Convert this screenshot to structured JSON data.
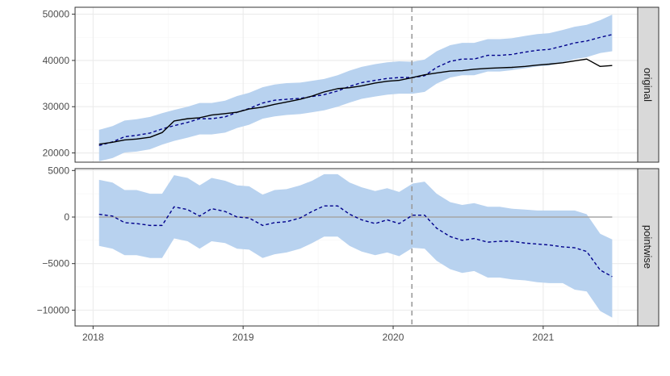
{
  "chart_data": {
    "type": "line",
    "x_tick_labels": [
      "2018",
      "2019",
      "2020",
      "2021"
    ],
    "x_ticks": [
      2018,
      2019,
      2020,
      2021
    ],
    "xlim": [
      2017.88,
      2021.63
    ],
    "intervention_x": 2020.125,
    "colors": {
      "band": "#b8d2ef",
      "actual": "#000000",
      "predicted": "#00008b",
      "zero_line": "#a6a6a6",
      "intervention": "#9a9a9a",
      "strip": "#d9d9d9",
      "grid_major": "#ebebeb",
      "grid_minor": "#f4f4f4",
      "panel_border": "#333333"
    },
    "panels": [
      {
        "label": "original",
        "ylim": [
          18000,
          51500
        ],
        "y_ticks": [
          20000,
          30000,
          40000,
          50000
        ],
        "y_tick_labels": [
          "20000",
          "30000",
          "40000",
          "50000"
        ],
        "series": [
          {
            "name": "band",
            "x": [
              2018.04,
              2018.13,
              2018.21,
              2018.29,
              2018.38,
              2018.46,
              2018.54,
              2018.63,
              2018.71,
              2018.79,
              2018.88,
              2018.96,
              2019.04,
              2019.13,
              2019.21,
              2019.29,
              2019.38,
              2019.46,
              2019.54,
              2019.63,
              2019.71,
              2019.79,
              2019.88,
              2019.96,
              2020.04,
              2020.13,
              2020.21,
              2020.29,
              2020.38,
              2020.46,
              2020.54,
              2020.63,
              2020.71,
              2020.79,
              2020.88,
              2020.96,
              2021.04,
              2021.13,
              2021.21,
              2021.29,
              2021.38,
              2021.46
            ],
            "upper": [
              25000,
              25800,
              27000,
              27300,
              27800,
              28600,
              29300,
              30000,
              30800,
              30800,
              31300,
              32300,
              33000,
              34200,
              34800,
              35100,
              35200,
              35600,
              36000,
              36800,
              37800,
              38600,
              39200,
              39600,
              39800,
              39700,
              40200,
              42000,
              43300,
              43800,
              43800,
              44600,
              44600,
              44800,
              45300,
              45700,
              45900,
              46600,
              47300,
              47700,
              48700,
              49900
            ],
            "lower": [
              18200,
              18900,
              20100,
              20300,
              20800,
              21800,
              22600,
              23300,
              24000,
              24000,
              24400,
              25400,
              26100,
              27400,
              27900,
              28200,
              28400,
              28800,
              29200,
              30000,
              30900,
              31700,
              32200,
              32600,
              32800,
              32800,
              33200,
              35000,
              36300,
              36800,
              36800,
              37600,
              37600,
              37900,
              38300,
              38700,
              38900,
              39600,
              40300,
              40700,
              41600,
              42000
            ]
          },
          {
            "name": "predicted",
            "x": [
              2018.04,
              2018.13,
              2018.21,
              2018.29,
              2018.38,
              2018.46,
              2018.54,
              2018.63,
              2018.71,
              2018.79,
              2018.88,
              2018.96,
              2019.04,
              2019.13,
              2019.21,
              2019.29,
              2019.38,
              2019.46,
              2019.54,
              2019.63,
              2019.71,
              2019.79,
              2019.88,
              2019.96,
              2020.04,
              2020.13,
              2020.21,
              2020.29,
              2020.38,
              2020.46,
              2020.54,
              2020.63,
              2020.71,
              2020.79,
              2020.88,
              2020.96,
              2021.04,
              2021.13,
              2021.21,
              2021.29,
              2021.38,
              2021.46
            ],
            "values": [
              21600,
              22400,
              23500,
              23800,
              24300,
              25200,
              25900,
              26600,
              27400,
              27400,
              27800,
              28800,
              29600,
              30800,
              31400,
              31600,
              31800,
              32200,
              32600,
              33400,
              34400,
              35200,
              35700,
              36100,
              36300,
              36300,
              36700,
              38500,
              39800,
              40300,
              40300,
              41100,
              41100,
              41300,
              41800,
              42200,
              42400,
              43100,
              43800,
              44200,
              45000,
              45600
            ]
          },
          {
            "name": "actual",
            "x": [
              2018.04,
              2018.13,
              2018.21,
              2018.29,
              2018.38,
              2018.46,
              2018.54,
              2018.63,
              2018.71,
              2018.79,
              2018.88,
              2018.96,
              2019.04,
              2019.13,
              2019.21,
              2019.29,
              2019.38,
              2019.46,
              2019.54,
              2019.63,
              2019.71,
              2019.79,
              2019.88,
              2019.96,
              2020.04,
              2020.13,
              2020.21,
              2020.29,
              2020.38,
              2020.46,
              2020.54,
              2020.63,
              2020.71,
              2020.79,
              2020.88,
              2020.96,
              2021.04,
              2021.13,
              2021.21,
              2021.29,
              2021.38,
              2021.46
            ],
            "values": [
              21900,
              22300,
              22800,
              23000,
              23400,
              24400,
              26900,
              27400,
              27600,
              28200,
              28500,
              28800,
              29500,
              29900,
              30500,
              31000,
              31600,
              32300,
              33200,
              33900,
              34100,
              34500,
              35100,
              35500,
              35700,
              36300,
              36900,
              37300,
              37700,
              37800,
              38100,
              38300,
              38400,
              38500,
              38700,
              39000,
              39200,
              39500,
              39900,
              40300,
              38700,
              38900
            ]
          }
        ]
      },
      {
        "label": "pointwise",
        "ylim": [
          -11700,
          5200
        ],
        "y_ticks": [
          -10000,
          -5000,
          0,
          5000
        ],
        "y_tick_labels": [
          "−10000",
          "−5000",
          "0",
          "5000"
        ],
        "series": [
          {
            "name": "band",
            "x": [
              2018.04,
              2018.13,
              2018.21,
              2018.29,
              2018.38,
              2018.46,
              2018.54,
              2018.63,
              2018.71,
              2018.79,
              2018.88,
              2018.96,
              2019.04,
              2019.13,
              2019.21,
              2019.29,
              2019.38,
              2019.46,
              2019.54,
              2019.63,
              2019.71,
              2019.79,
              2019.88,
              2019.96,
              2020.04,
              2020.13,
              2020.21,
              2020.29,
              2020.38,
              2020.46,
              2020.54,
              2020.63,
              2020.71,
              2020.79,
              2020.88,
              2020.96,
              2021.04,
              2021.13,
              2021.21,
              2021.29,
              2021.38,
              2021.46
            ],
            "upper": [
              4000,
              3700,
              2900,
              2900,
              2500,
              2500,
              4500,
              4200,
              3400,
              4200,
              3900,
              3400,
              3300,
              2400,
              2900,
              3000,
              3400,
              3900,
              4600,
              4600,
              3700,
              3200,
              2800,
              3100,
              2700,
              3600,
              3800,
              2500,
              1600,
              1300,
              1500,
              1100,
              1100,
              900,
              800,
              700,
              700,
              700,
              700,
              300,
              -1800,
              -2400
            ],
            "lower": [
              -3100,
              -3400,
              -4100,
              -4100,
              -4400,
              -4400,
              -2300,
              -2600,
              -3400,
              -2600,
              -2800,
              -3400,
              -3500,
              -4400,
              -4000,
              -3800,
              -3400,
              -2800,
              -2100,
              -2100,
              -3100,
              -3700,
              -4100,
              -3800,
              -4200,
              -3300,
              -3400,
              -4700,
              -5600,
              -6000,
              -5800,
              -6500,
              -6500,
              -6700,
              -6800,
              -7000,
              -7100,
              -7100,
              -7800,
              -8000,
              -10100,
              -10800
            ]
          },
          {
            "name": "predicted",
            "x": [
              2018.04,
              2018.13,
              2018.21,
              2018.29,
              2018.38,
              2018.46,
              2018.54,
              2018.63,
              2018.71,
              2018.79,
              2018.88,
              2018.96,
              2019.04,
              2019.13,
              2019.21,
              2019.29,
              2019.38,
              2019.46,
              2019.54,
              2019.63,
              2019.71,
              2019.79,
              2019.88,
              2019.96,
              2020.04,
              2020.13,
              2020.21,
              2020.29,
              2020.38,
              2020.46,
              2020.54,
              2020.63,
              2020.71,
              2020.79,
              2020.88,
              2020.96,
              2021.04,
              2021.13,
              2021.21,
              2021.29,
              2021.38,
              2021.46
            ],
            "values": [
              300,
              100,
              -600,
              -700,
              -900,
              -900,
              1100,
              800,
              100,
              900,
              600,
              0,
              -100,
              -900,
              -600,
              -500,
              -100,
              600,
              1200,
              1200,
              300,
              -300,
              -700,
              -300,
              -700,
              200,
              200,
              -1200,
              -2100,
              -2500,
              -2300,
              -2700,
              -2600,
              -2600,
              -2800,
              -2900,
              -3000,
              -3200,
              -3300,
              -3700,
              -5700,
              -6400
            ]
          },
          {
            "name": "zero",
            "x": [
              2018.04,
              2021.46
            ],
            "values": [
              0,
              0
            ]
          }
        ]
      }
    ]
  }
}
